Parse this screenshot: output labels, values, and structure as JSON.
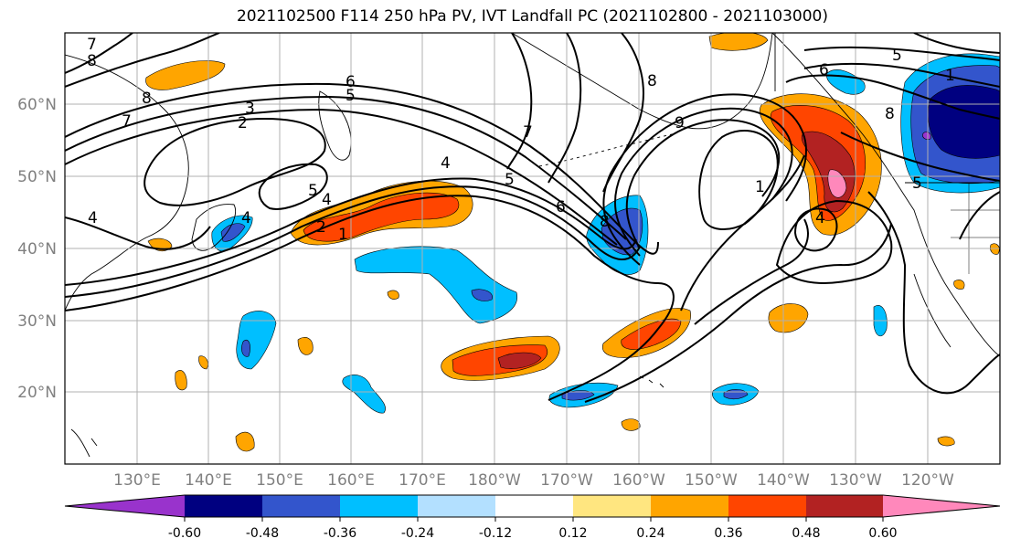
{
  "title": "2021102500 F114 250 hPa PV, IVT Landfall PC (2021102800 - 2021103000)",
  "lat_labels": [
    "60°N",
    "50°N",
    "40°N",
    "30°N",
    "20°N"
  ],
  "lon_labels": [
    "130°E",
    "140°E",
    "150°E",
    "160°E",
    "170°E",
    "180°W",
    "170°W",
    "160°W",
    "150°W",
    "140°W",
    "130°W",
    "120°W"
  ],
  "colorbar": {
    "colors": [
      "#9933cc",
      "#000080",
      "#3355cc",
      "#00bfff",
      "#b3e0ff",
      "#ffffff",
      "#ffe680",
      "#ffa500",
      "#ff4500",
      "#b22222",
      "#ff88bb"
    ],
    "tick_labels": [
      "-0.60",
      "-0.48",
      "-0.36",
      "-0.24",
      "-0.12",
      "0.12",
      "0.24",
      "0.36",
      "0.48",
      "0.60"
    ]
  },
  "contour_labels": [
    "7",
    "8",
    "8",
    "7",
    "6",
    "5",
    "2",
    "3",
    "4",
    "4",
    "5",
    "4",
    "2",
    "1",
    "7",
    "4",
    "5",
    "6",
    "8",
    "8",
    "9",
    "1",
    "4",
    "6",
    "5",
    "1",
    "8",
    "5"
  ]
}
